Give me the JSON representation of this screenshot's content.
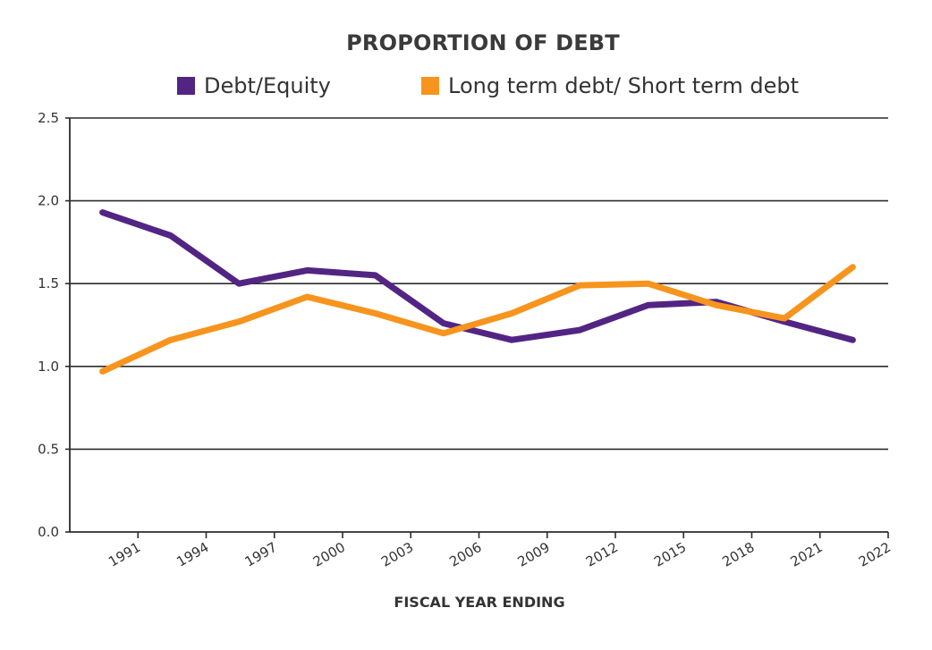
{
  "chart_data": {
    "type": "line",
    "title": "PROPORTION OF DEBT",
    "xlabel": "FISCAL YEAR ENDING",
    "ylabel": "",
    "ylim": [
      0,
      2.5
    ],
    "yticks": [
      "0.0",
      "0.5",
      "1.0",
      "1.5",
      "2.0",
      "2.5"
    ],
    "xticks": [
      "1991",
      "1994",
      "1997",
      "2000",
      "2003",
      "2006",
      "2009",
      "2012",
      "2015",
      "2018",
      "2021",
      "2022"
    ],
    "grid": true,
    "legend_position": "top",
    "series": [
      {
        "name": "Debt/Equity",
        "color": "#522584",
        "points": [
          {
            "x": 0.48,
            "y": 1.93
          },
          {
            "x": 1.48,
            "y": 1.79
          },
          {
            "x": 2.48,
            "y": 1.5
          },
          {
            "x": 3.48,
            "y": 1.58
          },
          {
            "x": 4.48,
            "y": 1.55
          },
          {
            "x": 5.48,
            "y": 1.26
          },
          {
            "x": 6.48,
            "y": 1.16
          },
          {
            "x": 7.48,
            "y": 1.22
          },
          {
            "x": 8.48,
            "y": 1.37
          },
          {
            "x": 9.48,
            "y": 1.39
          },
          {
            "x": 10.48,
            "y": 1.27
          },
          {
            "x": 11.48,
            "y": 1.16
          }
        ]
      },
      {
        "name": "Long term debt/ Short term debt",
        "color": "#F7941D",
        "points": [
          {
            "x": 0.48,
            "y": 0.97
          },
          {
            "x": 1.48,
            "y": 1.16
          },
          {
            "x": 2.48,
            "y": 1.27
          },
          {
            "x": 3.48,
            "y": 1.42
          },
          {
            "x": 4.48,
            "y": 1.32
          },
          {
            "x": 5.48,
            "y": 1.2
          },
          {
            "x": 6.48,
            "y": 1.32
          },
          {
            "x": 7.48,
            "y": 1.49
          },
          {
            "x": 8.48,
            "y": 1.5
          },
          {
            "x": 9.48,
            "y": 1.37
          },
          {
            "x": 10.48,
            "y": 1.29
          },
          {
            "x": 11.48,
            "y": 1.6
          }
        ]
      }
    ]
  }
}
